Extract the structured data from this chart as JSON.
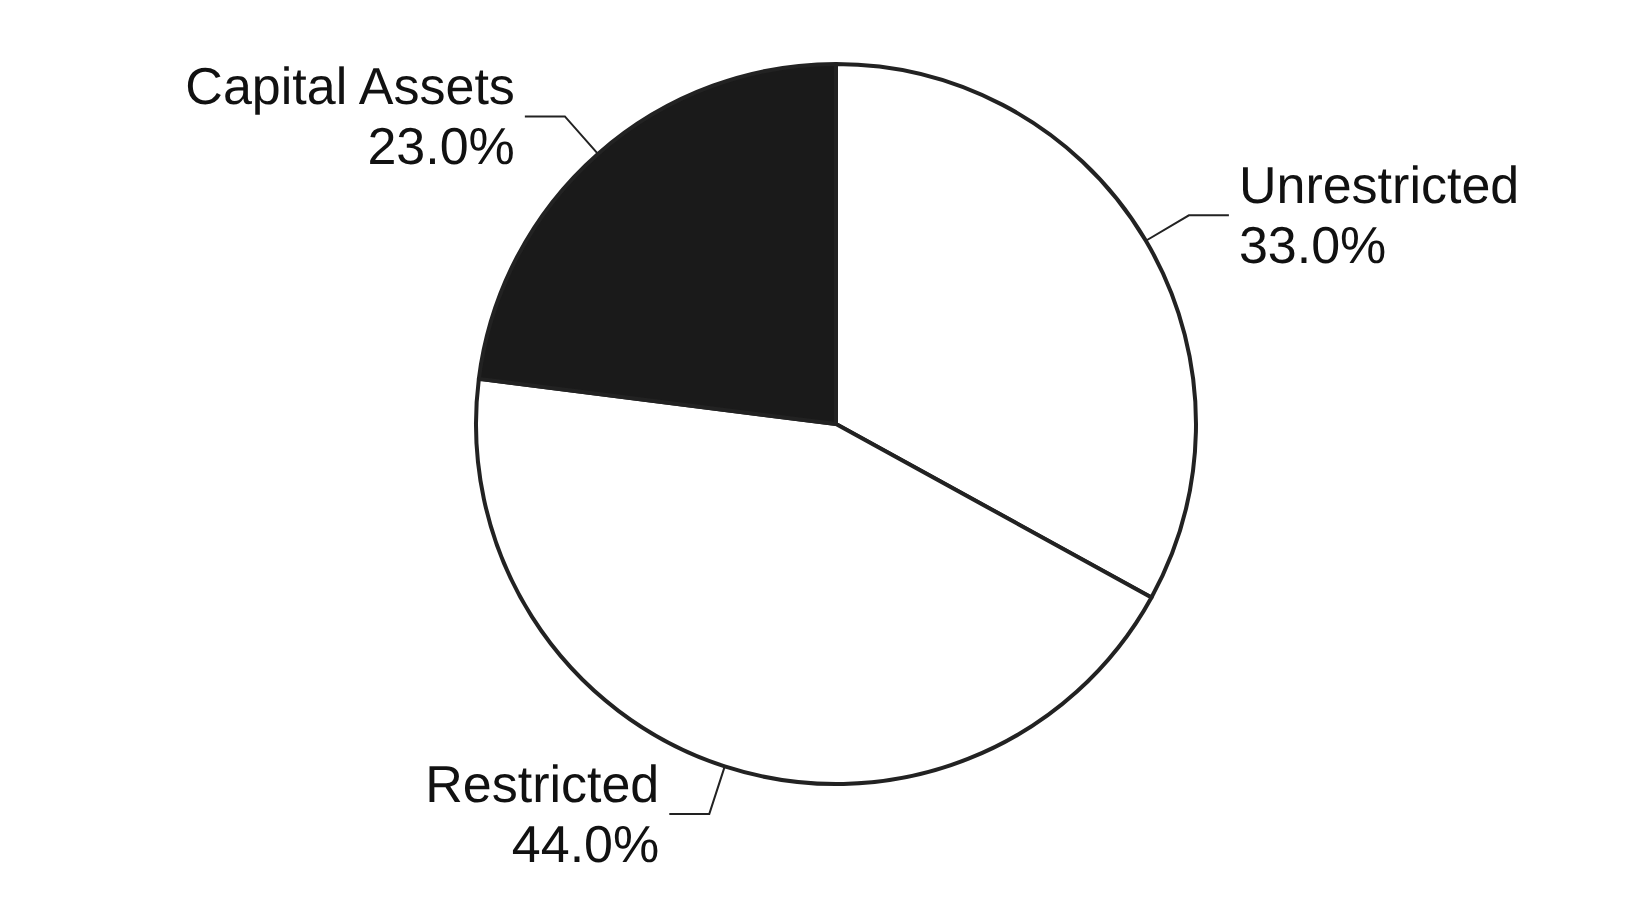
{
  "chart_data": {
    "type": "pie",
    "categories": [
      "Unrestricted",
      "Restricted",
      "Capital Assets"
    ],
    "values": [
      33,
      44,
      23
    ],
    "colors": [
      "#ffffff",
      "#ffffff",
      "#1a1a1a"
    ],
    "value_labels": [
      "33.0%",
      "44.0%",
      "23.0%"
    ],
    "legend": false
  }
}
